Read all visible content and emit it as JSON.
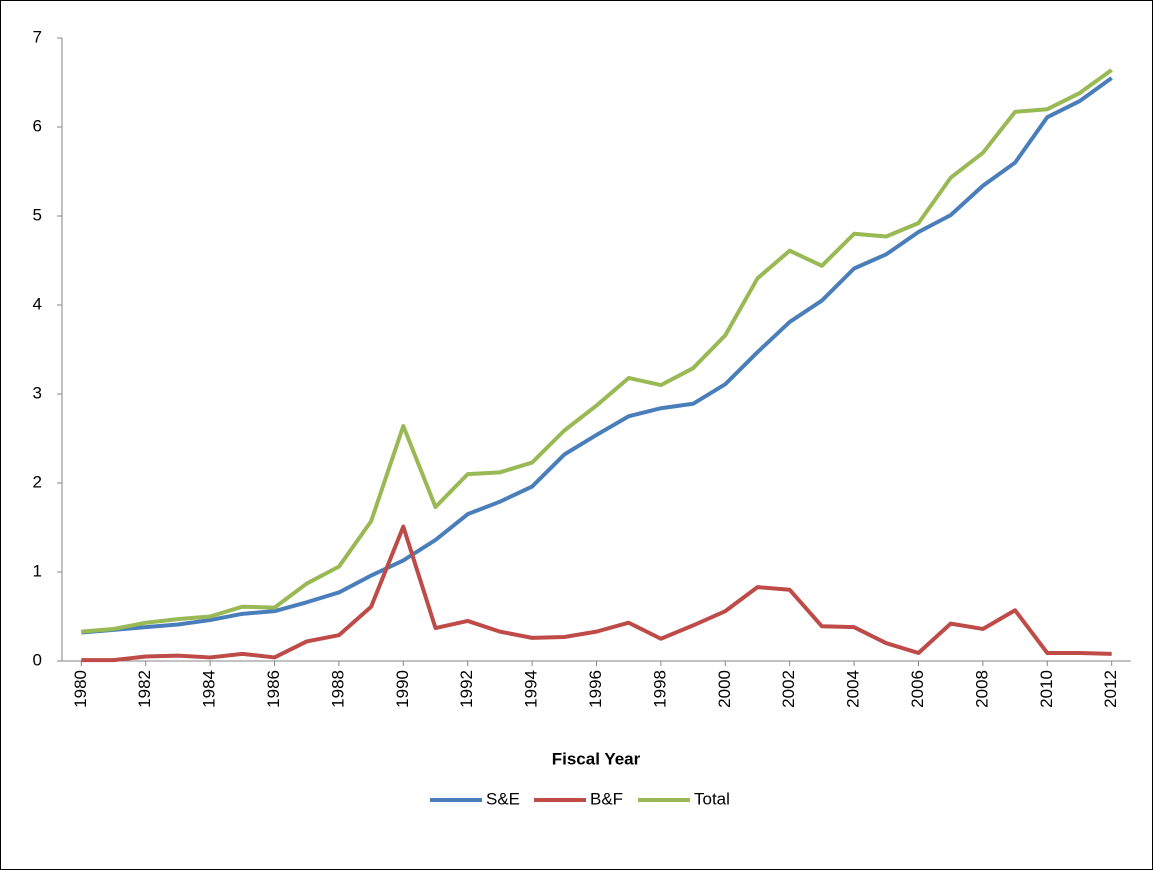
{
  "chart_data": {
    "type": "line",
    "x_label": "Fiscal Year",
    "x": [
      1980,
      1981,
      1982,
      1983,
      1984,
      1985,
      1986,
      1987,
      1988,
      1989,
      1990,
      1991,
      1992,
      1993,
      1994,
      1995,
      1996,
      1997,
      1998,
      1999,
      2000,
      2001,
      2002,
      2003,
      2004,
      2005,
      2006,
      2007,
      2008,
      2009,
      2010,
      2011,
      2012
    ],
    "series": [
      {
        "name": "S&E",
        "color": "#4a7ebb",
        "values": [
          0.32,
          0.35,
          0.38,
          0.41,
          0.46,
          0.53,
          0.56,
          0.66,
          0.77,
          0.96,
          1.13,
          1.36,
          1.65,
          1.79,
          1.96,
          2.32,
          2.54,
          2.75,
          2.84,
          2.89,
          3.11,
          3.47,
          3.81,
          4.05,
          4.41,
          4.57,
          4.82,
          5.01,
          5.34,
          5.6,
          6.11,
          6.29,
          6.55
        ]
      },
      {
        "name": "B&F",
        "color": "#be4b48",
        "values": [
          0.01,
          0.01,
          0.05,
          0.06,
          0.04,
          0.08,
          0.04,
          0.22,
          0.29,
          0.61,
          1.51,
          0.37,
          0.45,
          0.33,
          0.26,
          0.27,
          0.33,
          0.43,
          0.25,
          0.4,
          0.56,
          0.83,
          0.8,
          0.39,
          0.38,
          0.2,
          0.09,
          0.42,
          0.36,
          0.57,
          0.09,
          0.09,
          0.08
        ]
      },
      {
        "name": "Total",
        "color": "#98b954",
        "values": [
          0.33,
          0.36,
          0.43,
          0.47,
          0.5,
          0.61,
          0.6,
          0.87,
          1.06,
          1.57,
          2.64,
          1.73,
          2.1,
          2.12,
          2.23,
          2.59,
          2.87,
          3.18,
          3.1,
          3.29,
          3.66,
          4.3,
          4.61,
          4.44,
          4.8,
          4.77,
          4.92,
          5.43,
          5.71,
          6.17,
          6.2,
          6.38,
          6.64
        ]
      }
    ],
    "xlim": [
      1979.4,
      2012.6
    ],
    "xticks": [
      1980,
      1982,
      1984,
      1986,
      1988,
      1990,
      1992,
      1994,
      1996,
      1998,
      2000,
      2002,
      2004,
      2006,
      2008,
      2010,
      2012
    ],
    "ylim": [
      0,
      7
    ],
    "yticks": [
      0,
      1,
      2,
      3,
      4,
      5,
      6,
      7
    ],
    "legend": "bottom"
  }
}
